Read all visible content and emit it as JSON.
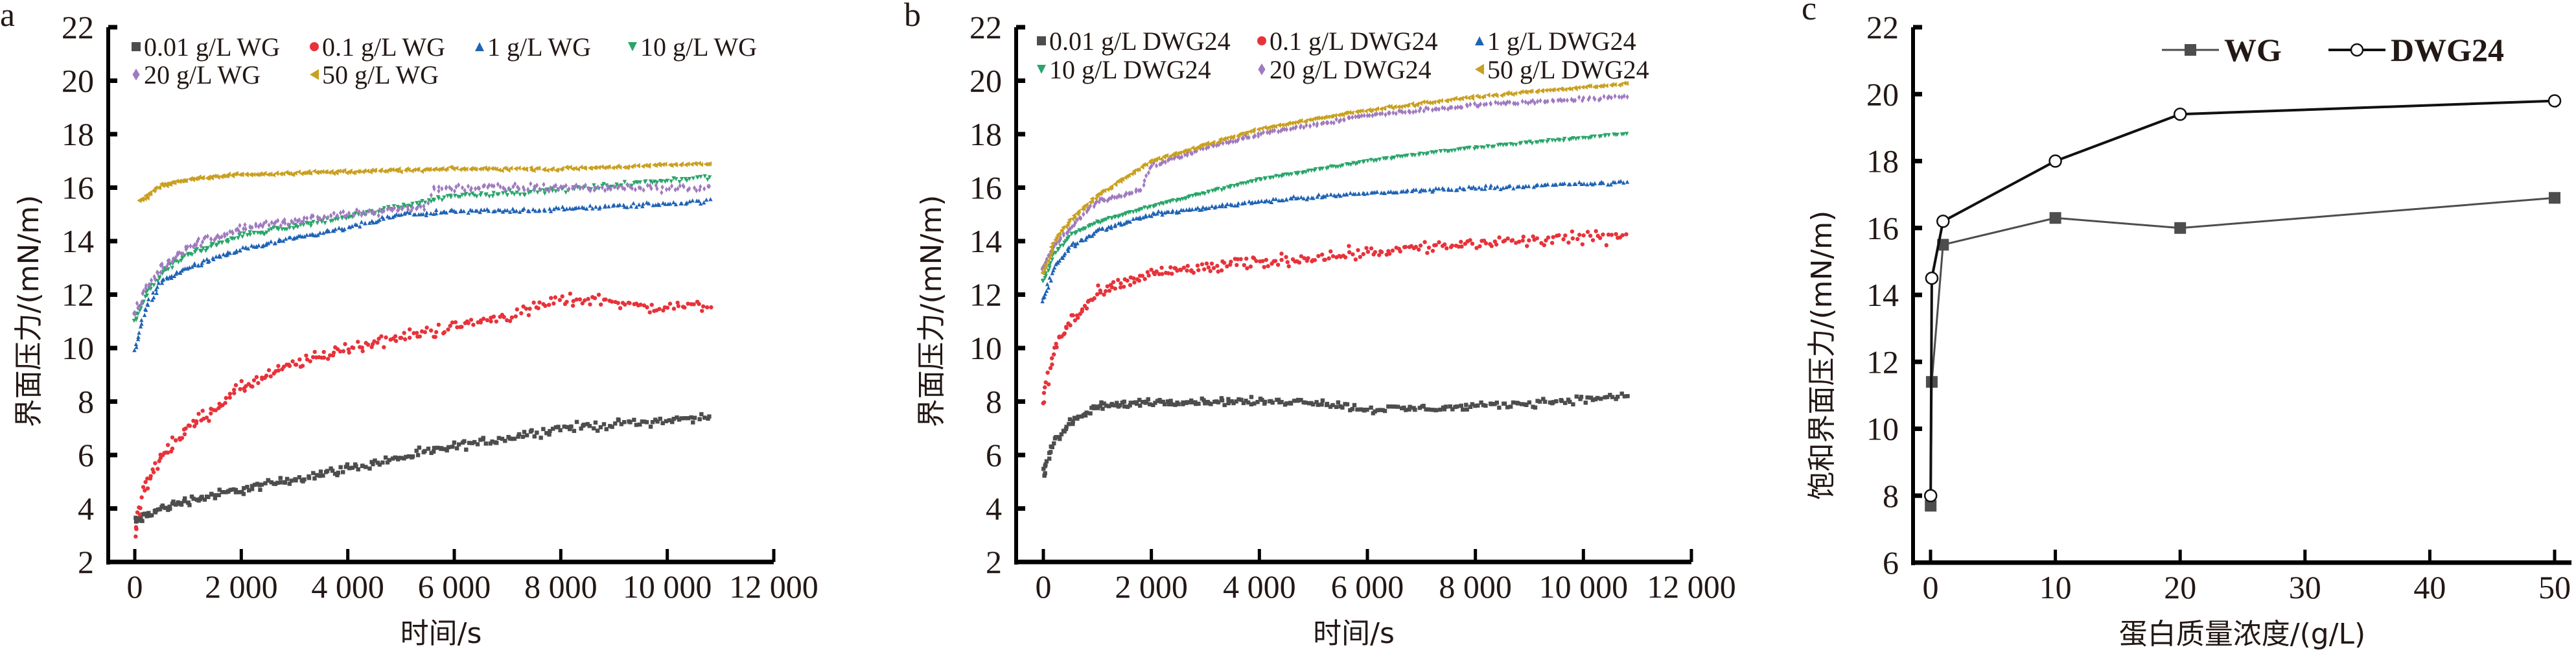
{
  "chart_data": [
    {
      "panel": "a",
      "type": "scatter",
      "xlabel": "时间/s",
      "ylabel": "界面压力/(mN/m)",
      "xlim": [
        0,
        12000
      ],
      "ylim": [
        2,
        22
      ],
      "xticks": [
        "0",
        "2 000",
        "4 000",
        "6 000",
        "8 000",
        "10 000",
        "12 000"
      ],
      "yticks": [
        "2",
        "4",
        "6",
        "8",
        "10",
        "12",
        "14",
        "16",
        "18",
        "20",
        "22"
      ],
      "grid": false,
      "legend": "top",
      "series": [
        {
          "name": "0.01 g/L WG",
          "color": "#4d4d4d",
          "marker": "square",
          "x": [
            0,
            500,
            1000,
            2000,
            3000,
            4000,
            6000,
            8000,
            10000,
            10800
          ],
          "y": [
            3.5,
            4.0,
            4.3,
            4.7,
            5.1,
            5.5,
            6.3,
            7.0,
            7.3,
            7.4
          ]
        },
        {
          "name": "0.1 g/L WG",
          "color": "#e8323a",
          "marker": "circle",
          "x": [
            0,
            200,
            500,
            1000,
            2000,
            3000,
            4000,
            6000,
            7000,
            8000,
            9000,
            9500,
            10800
          ],
          "y": [
            3.2,
            4.8,
            6.0,
            7.0,
            8.5,
            9.4,
            10.0,
            10.8,
            11.2,
            11.8,
            11.8,
            11.5,
            11.6
          ]
        },
        {
          "name": "1 g/L WG",
          "color": "#1f63b5",
          "marker": "triangle-up",
          "x": [
            0,
            200,
            500,
            1000,
            2000,
            4000,
            5000,
            6000,
            8000,
            10800
          ],
          "y": [
            10.0,
            11.5,
            12.5,
            13.0,
            13.7,
            14.5,
            15.0,
            15.1,
            15.2,
            15.5
          ]
        },
        {
          "name": "10 g/L WG",
          "color": "#2aa56a",
          "marker": "triangle-down",
          "x": [
            0,
            200,
            500,
            1000,
            2000,
            4000,
            5500,
            6000,
            8000,
            10800
          ],
          "y": [
            11.0,
            12.0,
            12.8,
            13.5,
            14.2,
            14.9,
            15.5,
            15.7,
            15.9,
            16.4
          ]
        },
        {
          "name": "20 g/L WG",
          "color": "#a07ac0",
          "marker": "diamond",
          "x": [
            0,
            200,
            500,
            1000,
            2000,
            4000,
            5500,
            5600,
            8000,
            10800
          ],
          "y": [
            11.2,
            12.2,
            13.0,
            13.8,
            14.5,
            15.0,
            15.3,
            16.0,
            16.0,
            16.0
          ]
        },
        {
          "name": "50 g/L WG",
          "color": "#c9a020",
          "marker": "triangle-left",
          "x": [
            100,
            500,
            1000,
            2000,
            4000,
            6000,
            8000,
            10800
          ],
          "y": [
            15.5,
            16.1,
            16.3,
            16.5,
            16.6,
            16.7,
            16.7,
            16.9
          ]
        }
      ]
    },
    {
      "panel": "b",
      "type": "scatter",
      "xlabel": "时间/s",
      "ylabel": "界面压力/(mN/m)",
      "xlim": [
        0,
        12000
      ],
      "ylim": [
        2,
        22
      ],
      "xticks": [
        "0",
        "2 000",
        "4 000",
        "6 000",
        "8 000",
        "10 000",
        "12 000"
      ],
      "yticks": [
        "2",
        "4",
        "6",
        "8",
        "10",
        "12",
        "14",
        "16",
        "18",
        "20",
        "22"
      ],
      "grid": false,
      "legend": "top",
      "series": [
        {
          "name": "0.01 g/L DWG24",
          "color": "#4d4d4d",
          "marker": "square",
          "x": [
            0,
            200,
            500,
            1000,
            2000,
            4000,
            5000,
            6000,
            8000,
            10800
          ],
          "y": [
            5.3,
            6.5,
            7.2,
            7.8,
            8.0,
            8.0,
            8.0,
            7.7,
            7.8,
            8.2
          ]
        },
        {
          "name": "0.1 g/L DWG24",
          "color": "#e8323a",
          "marker": "circle",
          "x": [
            0,
            200,
            500,
            1000,
            2000,
            4000,
            6000,
            8000,
            10800
          ],
          "y": [
            8.0,
            10.0,
            11.0,
            12.0,
            12.8,
            13.2,
            13.6,
            13.9,
            14.2
          ]
        },
        {
          "name": "1 g/L DWG24",
          "color": "#1f63b5",
          "marker": "triangle-up",
          "x": [
            0,
            200,
            500,
            1000,
            2000,
            4000,
            6000,
            8000,
            10800
          ],
          "y": [
            11.8,
            13.0,
            13.8,
            14.4,
            15.0,
            15.5,
            15.8,
            16.0,
            16.2
          ]
        },
        {
          "name": "10 g/L DWG24",
          "color": "#2aa56a",
          "marker": "triangle-down",
          "x": [
            0,
            200,
            500,
            1000,
            2000,
            4000,
            6000,
            8000,
            10800
          ],
          "y": [
            12.5,
            13.5,
            14.2,
            14.7,
            15.3,
            16.3,
            17.0,
            17.5,
            18.0
          ]
        },
        {
          "name": "20 g/L DWG24",
          "color": "#a07ac0",
          "marker": "diamond",
          "x": [
            0,
            200,
            500,
            1000,
            1800,
            2000,
            3000,
            4000,
            6000,
            8000,
            10800
          ],
          "y": [
            13.0,
            13.8,
            14.5,
            15.5,
            15.9,
            16.8,
            17.5,
            18.0,
            18.7,
            19.1,
            19.4
          ]
        },
        {
          "name": "50 g/L DWG24",
          "color": "#c9a020",
          "marker": "triangle-left",
          "x": [
            0,
            200,
            500,
            1000,
            2000,
            4000,
            6000,
            8000,
            10800
          ],
          "y": [
            12.8,
            14.0,
            14.8,
            15.7,
            17.0,
            18.2,
            18.9,
            19.4,
            19.9
          ]
        }
      ]
    },
    {
      "panel": "c",
      "type": "line",
      "xlabel": "蛋白质量浓度/(g/L)",
      "ylabel": "饱和界面压力/(mN/m)",
      "xlim": [
        0,
        50
      ],
      "ylim": [
        6,
        22
      ],
      "xticks": [
        "0",
        "10",
        "20",
        "30",
        "40",
        "50"
      ],
      "yticks": [
        "6",
        "8",
        "10",
        "12",
        "14",
        "16",
        "18",
        "20",
        "22"
      ],
      "grid": false,
      "legend": "top-right",
      "x": [
        0.01,
        0.1,
        1,
        10,
        20,
        50
      ],
      "series": [
        {
          "name": "WG",
          "color": "#4d4d4d",
          "marker": "filled-square",
          "values": [
            7.7,
            11.4,
            15.5,
            16.3,
            16.0,
            16.9
          ]
        },
        {
          "name": "DWG24",
          "color": "#111111",
          "marker": "open-circle",
          "values": [
            8.0,
            14.5,
            16.2,
            18.0,
            19.4,
            19.8
          ]
        }
      ]
    }
  ]
}
